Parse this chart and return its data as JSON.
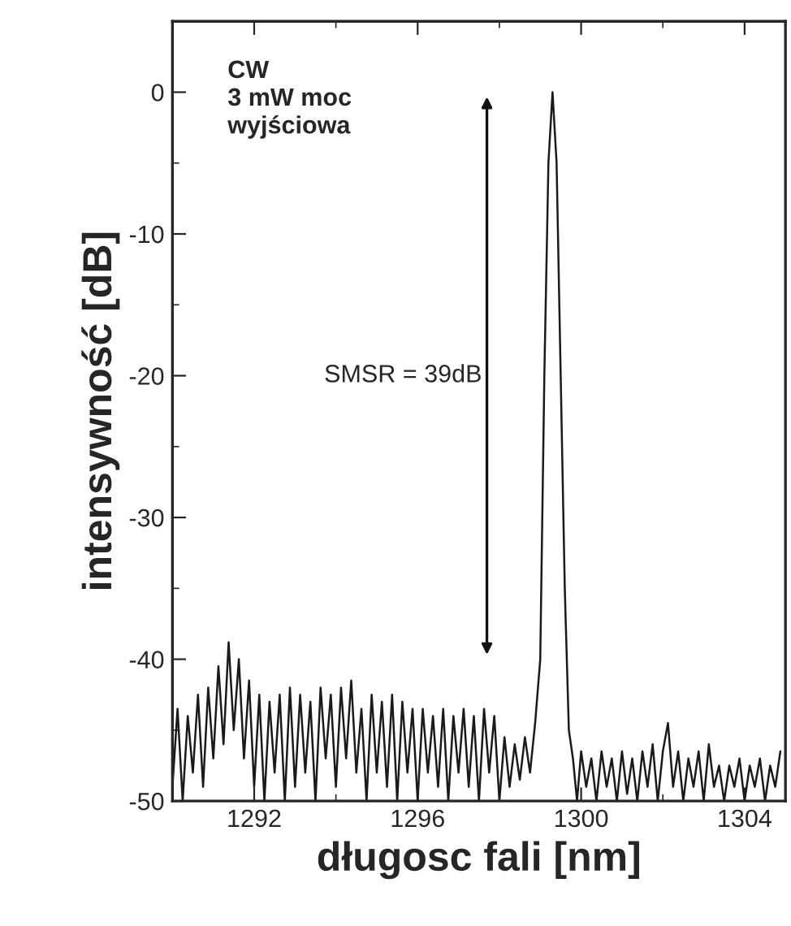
{
  "chart_data": {
    "type": "line",
    "xlabel": "długosc fali [nm]",
    "ylabel": "intensywność [dB]",
    "xlim": [
      1290,
      1305
    ],
    "xticks": [
      1292,
      1296,
      1300,
      1304
    ],
    "ylim": [
      -50,
      5
    ],
    "yticks": [
      -50,
      -40,
      -30,
      -20,
      -10,
      0
    ],
    "grid": false,
    "legend": false,
    "marker": "none",
    "line_style": "solid",
    "annotations": [
      "CW\n3 mW moc\nwyjściowa",
      "SMSR = 39dB"
    ],
    "series": [
      {
        "color": "#1a1a1a",
        "x": [
          1290.0,
          1290.125,
          1290.25,
          1290.375,
          1290.5,
          1290.625,
          1290.75,
          1290.875,
          1291.0,
          1291.125,
          1291.25,
          1291.375,
          1291.5,
          1291.625,
          1291.75,
          1291.875,
          1292.0,
          1292.125,
          1292.25,
          1292.375,
          1292.5,
          1292.625,
          1292.75,
          1292.875,
          1293.0,
          1293.125,
          1293.25,
          1293.375,
          1293.5,
          1293.625,
          1293.75,
          1293.875,
          1294.0,
          1294.125,
          1294.25,
          1294.375,
          1294.5,
          1294.625,
          1294.75,
          1294.875,
          1295.0,
          1295.125,
          1295.25,
          1295.375,
          1295.5,
          1295.625,
          1295.75,
          1295.875,
          1296.0,
          1296.125,
          1296.25,
          1296.375,
          1296.5,
          1296.625,
          1296.75,
          1296.875,
          1297.0,
          1297.125,
          1297.25,
          1297.375,
          1297.5,
          1297.625,
          1297.75,
          1297.875,
          1298.0,
          1298.125,
          1298.25,
          1298.375,
          1298.5,
          1298.625,
          1298.75,
          1298.875,
          1299.0,
          1299.1,
          1299.2,
          1299.3,
          1299.4,
          1299.5,
          1299.6,
          1299.7,
          1299.8,
          1299.9,
          1300.0,
          1300.125,
          1300.25,
          1300.375,
          1300.5,
          1300.625,
          1300.75,
          1300.875,
          1301.0,
          1301.125,
          1301.25,
          1301.375,
          1301.5,
          1301.625,
          1301.75,
          1301.875,
          1302.0,
          1302.125,
          1302.25,
          1302.375,
          1302.5,
          1302.625,
          1302.75,
          1302.875,
          1303.0,
          1303.125,
          1303.25,
          1303.375,
          1303.5,
          1303.625,
          1303.75,
          1303.875,
          1304.0,
          1304.125,
          1304.25,
          1304.375,
          1304.5,
          1304.625,
          1304.75,
          1304.875
        ],
        "values": [
          -49,
          -43.5,
          -50,
          -44,
          -48,
          -42.5,
          -49,
          -42,
          -47,
          -40.5,
          -46,
          -38.8,
          -45,
          -40,
          -47,
          -41.5,
          -49,
          -42.5,
          -50,
          -43,
          -48,
          -42.5,
          -50,
          -42,
          -49,
          -42.5,
          -48,
          -43,
          -50,
          -42,
          -47,
          -42.5,
          -49,
          -42,
          -47,
          -41.5,
          -48,
          -43.5,
          -50,
          -42.5,
          -48,
          -43,
          -49,
          -42.5,
          -50,
          -43,
          -48,
          -43.5,
          -50,
          -43.5,
          -48,
          -44,
          -49,
          -43.5,
          -50,
          -44,
          -48,
          -43.5,
          -49,
          -44,
          -50,
          -43.5,
          -48,
          -44,
          -50,
          -45.5,
          -49,
          -46,
          -48.5,
          -45.5,
          -48,
          -44.5,
          -40,
          -20,
          -5,
          0,
          -5,
          -20,
          -35,
          -45,
          -47,
          -50,
          -46.5,
          -49,
          -47,
          -50,
          -46.5,
          -49,
          -47,
          -50,
          -46.5,
          -49.5,
          -47,
          -50,
          -46.5,
          -49,
          -46,
          -50,
          -46.5,
          -44.5,
          -49,
          -46.5,
          -50,
          -47,
          -49,
          -46.5,
          -50,
          -46,
          -49,
          -47.5,
          -50,
          -47.5,
          -49,
          -47,
          -50,
          -47.5,
          -49,
          -47,
          -50,
          -47.5,
          -49,
          -46.5
        ]
      }
    ]
  }
}
